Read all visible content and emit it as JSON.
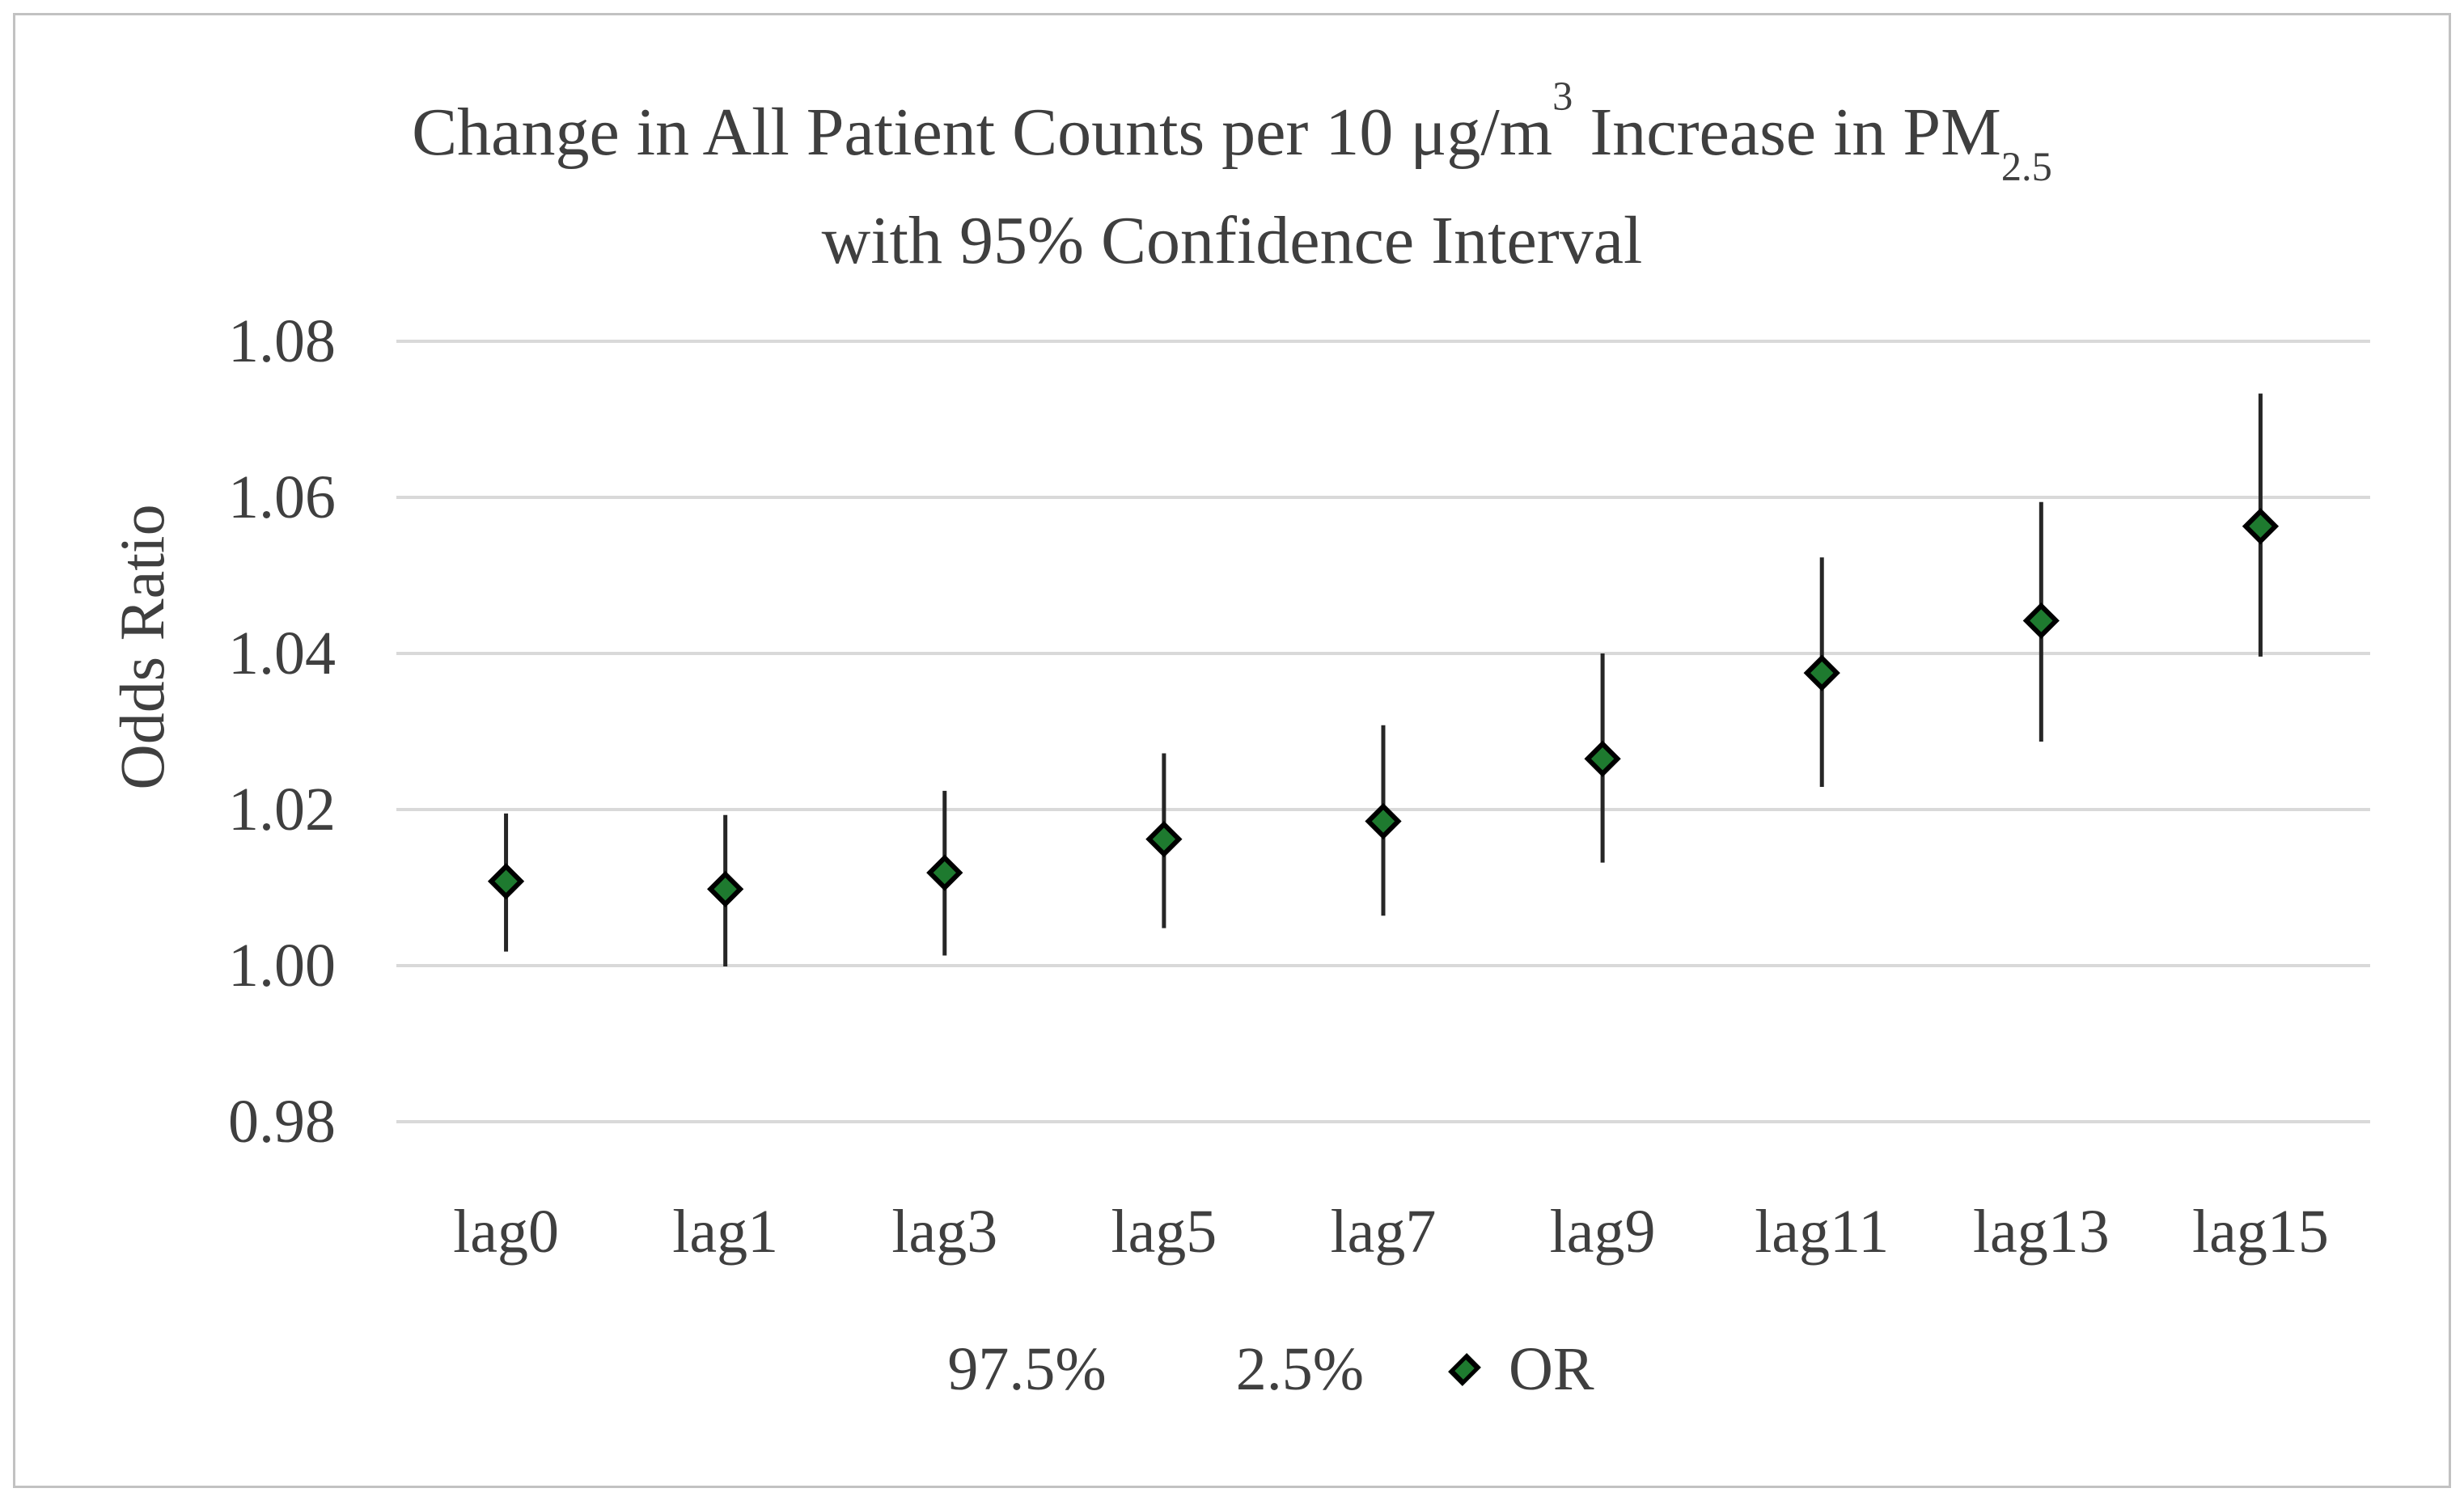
{
  "title": {
    "part1": "Change in All Patient Counts per 10 μg/m",
    "superscript": "3",
    "part2": " Increase in PM",
    "subscript": "2.5",
    "line2": "with 95% Confidence Interval"
  },
  "y_axis": {
    "label": "Odds Ratio"
  },
  "legend": {
    "items": [
      {
        "label": "97.5%",
        "marker": "none"
      },
      {
        "label": "2.5%",
        "marker": "none"
      },
      {
        "label": "OR",
        "marker": "green-diamond-icon"
      }
    ]
  },
  "colors": {
    "text": "#3f3f3f",
    "gridline": "#d9d9d9",
    "whisker": "#262626",
    "marker_fill": "#1e7a2f",
    "marker_stroke": "#000000",
    "frame_border": "#c2c2c2"
  },
  "chart_data": {
    "type": "scatter",
    "subtype": "dot-plot-with-error-bars",
    "title": "Change in All Patient Counts per 10 μg/m3 Increase in PM2.5 with 95% Confidence Interval",
    "xlabel": "",
    "ylabel": "Odds Ratio",
    "categories": [
      "lag0",
      "lag1",
      "lag3",
      "lag5",
      "lag7",
      "lag9",
      "lag11",
      "lag13",
      "lag15"
    ],
    "series": [
      {
        "name": "97.5%",
        "role": "ci_upper",
        "values": [
          1.0195,
          1.0193,
          1.0224,
          1.0272,
          1.0308,
          1.04,
          1.0523,
          1.0594,
          1.0733
        ]
      },
      {
        "name": "2.5%",
        "role": "ci_lower",
        "values": [
          1.0018,
          0.9999,
          1.0013,
          1.0048,
          1.0064,
          1.0132,
          1.0229,
          1.0287,
          1.0396
        ]
      },
      {
        "name": "OR",
        "role": "point_estimate",
        "values": [
          1.0108,
          1.0098,
          1.0119,
          1.0162,
          1.0185,
          1.0265,
          1.0375,
          1.0442,
          1.0563
        ]
      }
    ],
    "ylim": [
      0.98,
      1.08
    ],
    "yticks": [
      1.08,
      1.06,
      1.04,
      1.02,
      1.0,
      0.98
    ],
    "ytick_labels": [
      "1.08",
      "1.06",
      "1.04",
      "1.02",
      "1.00",
      "0.98"
    ],
    "grid": "horizontal",
    "legend_position": "bottom",
    "marker": "diamond"
  }
}
